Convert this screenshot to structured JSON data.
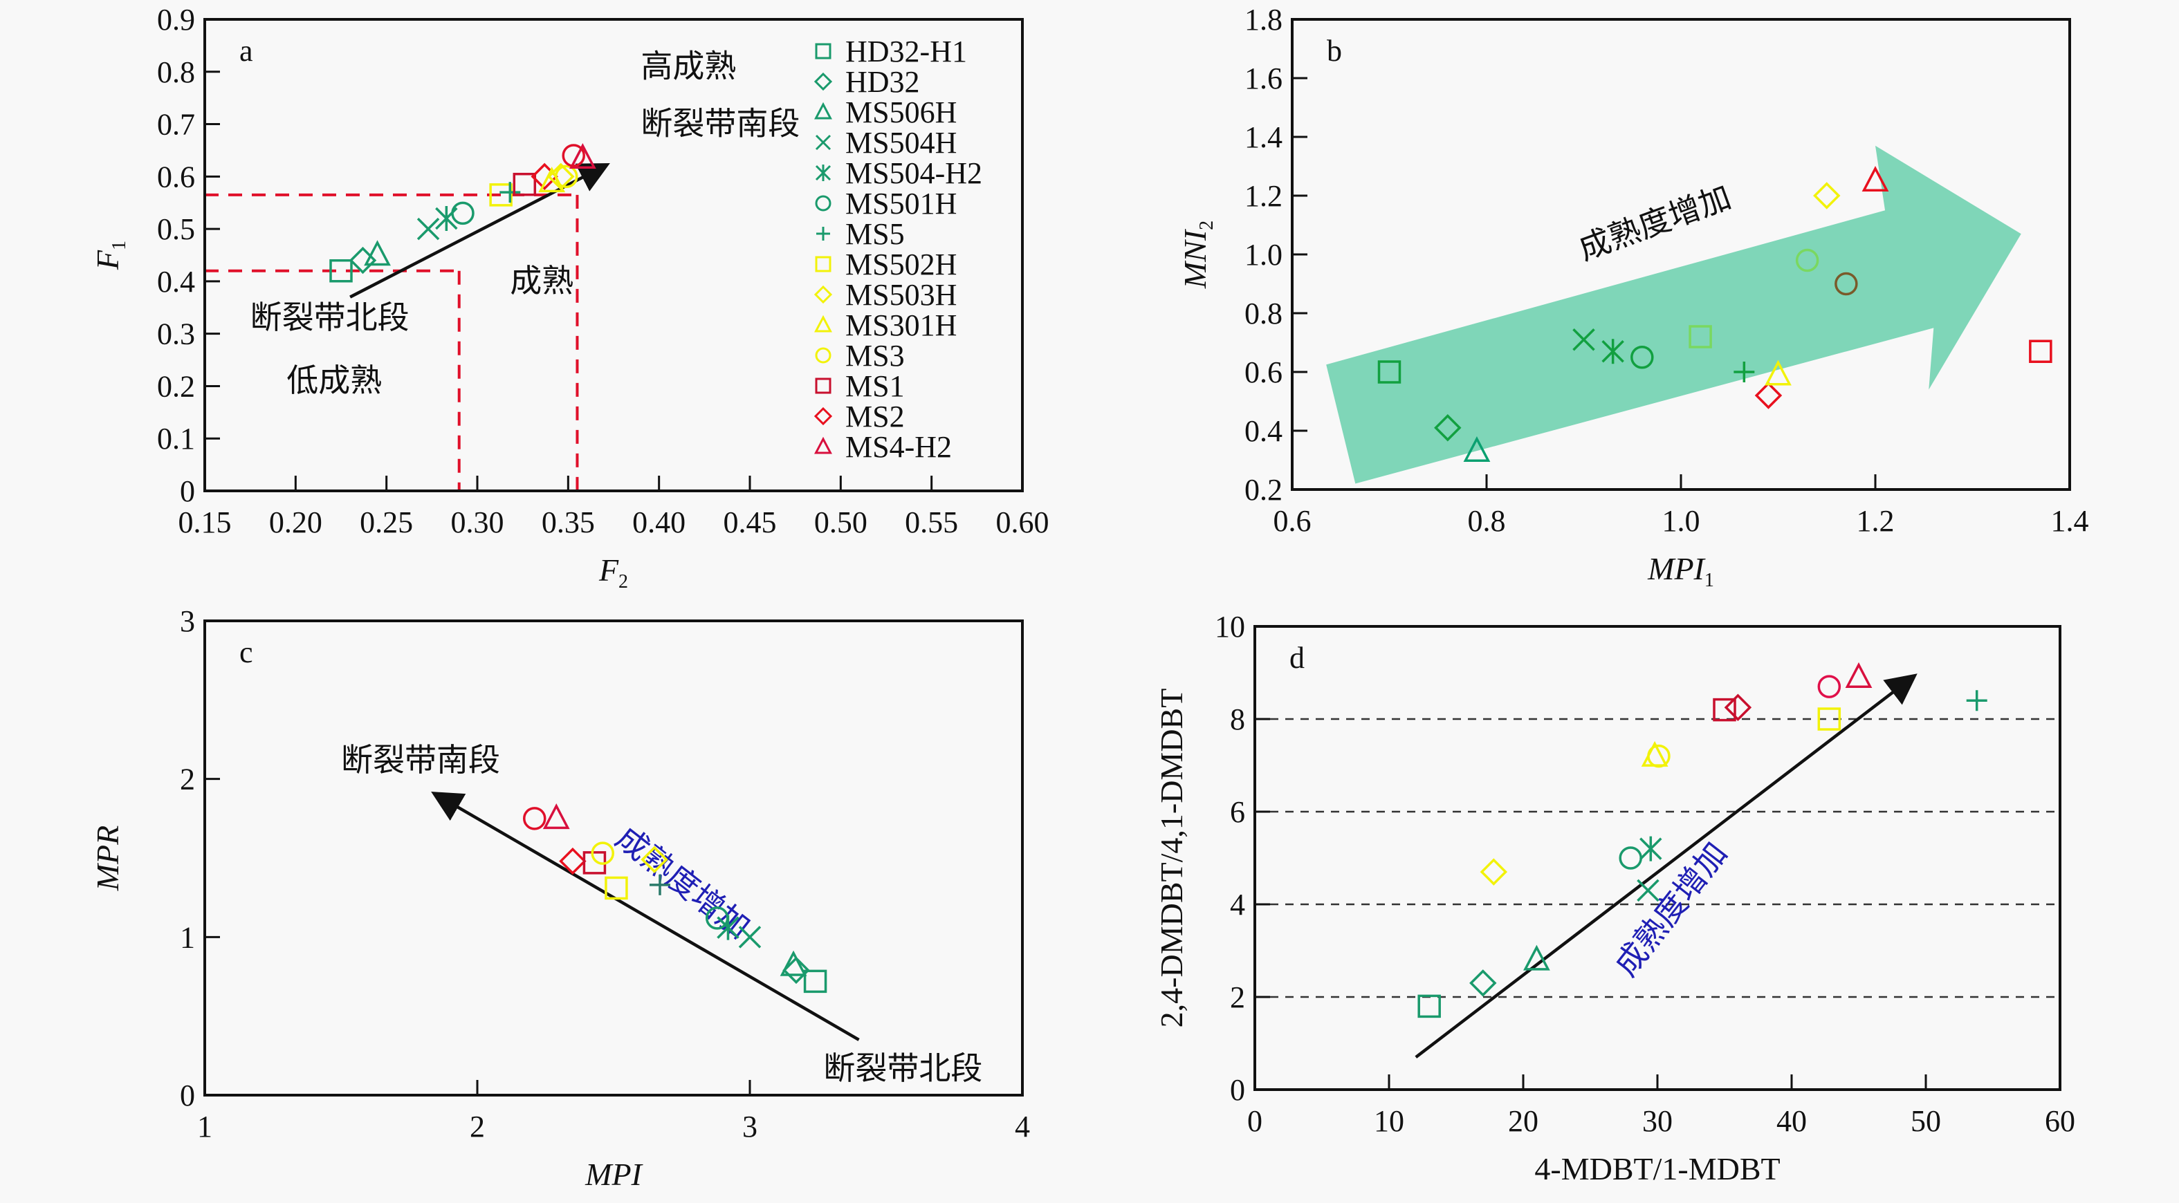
{
  "series_styles": {
    "HD32-H1": {
      "marker": "square",
      "color": "#1a9a6c"
    },
    "HD32": {
      "marker": "diamond",
      "color": "#1a9a6c"
    },
    "MS506H": {
      "marker": "triangle",
      "color": "#1a9a6c"
    },
    "MS504H": {
      "marker": "x",
      "color": "#1a9a6c"
    },
    "MS504-H2": {
      "marker": "asterisk",
      "color": "#1a9a6c"
    },
    "MS501H": {
      "marker": "circle",
      "color": "#1a9a6c"
    },
    "MS5": {
      "marker": "plus",
      "color": "#1a9a6c"
    },
    "MS502H": {
      "marker": "square",
      "color": "#f2f20a"
    },
    "MS503H": {
      "marker": "diamond",
      "color": "#f2f20a"
    },
    "MS301H": {
      "marker": "triangle",
      "color": "#f2f20a"
    },
    "MS3": {
      "marker": "circle",
      "color": "#f2f20a"
    },
    "MS1": {
      "marker": "square",
      "color": "#c8102e"
    },
    "MS2": {
      "marker": "diamond",
      "color": "#e8101e"
    },
    "MS4-H2": {
      "marker": "triangle",
      "color": "#d8103e"
    }
  },
  "chart_data": [
    {
      "id": "a",
      "type": "scatter",
      "panel_label": "a",
      "xlabel": "F",
      "xlabel_sub": "2",
      "ylabel": "F",
      "ylabel_sub": "1",
      "xlim": [
        0.15,
        0.6
      ],
      "ylim": [
        0,
        0.9
      ],
      "xticks": [
        "0.15",
        "0.20",
        "0.25",
        "0.30",
        "0.35",
        "0.40",
        "0.45",
        "0.50",
        "0.55",
        "0.60"
      ],
      "yticks": [
        "0",
        "0.1",
        "0.2",
        "0.3",
        "0.4",
        "0.5",
        "0.6",
        "0.7",
        "0.8",
        "0.9"
      ],
      "grid": false,
      "legend": {
        "placement": "top-right",
        "entries": [
          "HD32-H1",
          "HD32",
          "MS506H",
          "MS504H",
          "MS504-H2",
          "MS501H",
          "MS5",
          "MS502H",
          "MS503H",
          "MS301H",
          "MS3",
          "MS1",
          "MS2",
          "MS4-H2"
        ]
      },
      "threshold_lines": [
        {
          "orientation": "horizontal",
          "y": 0.42,
          "x_end": 0.29,
          "color": "#e0102a"
        },
        {
          "orientation": "horizontal",
          "y": 0.565,
          "x_end": 0.355,
          "color": "#e0102a"
        },
        {
          "orientation": "vertical",
          "x": 0.29,
          "y_end": 0.42,
          "color": "#e0102a"
        },
        {
          "orientation": "vertical",
          "x": 0.355,
          "y_end": 0.565,
          "color": "#e0102a"
        }
      ],
      "arrow": {
        "from": [
          0.23,
          0.37
        ],
        "to": [
          0.37,
          0.62
        ]
      },
      "annotations": [
        {
          "text": "高成熟",
          "x": 0.39,
          "y": 0.79
        },
        {
          "text": "断裂带南段",
          "x": 0.39,
          "y": 0.68
        },
        {
          "text": "成熟",
          "x": 0.318,
          "y": 0.38
        },
        {
          "text": "断裂带北段",
          "x": 0.175,
          "y": 0.31
        },
        {
          "text": "低成熟",
          "x": 0.195,
          "y": 0.19
        }
      ],
      "points": [
        {
          "series": "HD32-H1",
          "x": 0.225,
          "y": 0.42
        },
        {
          "series": "HD32",
          "x": 0.237,
          "y": 0.44
        },
        {
          "series": "MS506H",
          "x": 0.245,
          "y": 0.45
        },
        {
          "series": "MS504H",
          "x": 0.273,
          "y": 0.5
        },
        {
          "series": "MS504-H2",
          "x": 0.283,
          "y": 0.52
        },
        {
          "series": "MS501H",
          "x": 0.292,
          "y": 0.53
        },
        {
          "series": "MS502H",
          "x": 0.313,
          "y": 0.565
        },
        {
          "series": "MS5",
          "x": 0.318,
          "y": 0.57
        },
        {
          "series": "MS1",
          "x": 0.326,
          "y": 0.585
        },
        {
          "series": "MS2",
          "x": 0.337,
          "y": 0.6
        },
        {
          "series": "MS301H",
          "x": 0.341,
          "y": 0.59
        },
        {
          "series": "MS503H",
          "x": 0.346,
          "y": 0.6
        },
        {
          "series": "MS3",
          "x": 0.349,
          "y": 0.6
        },
        {
          "series": "MS4-H2",
          "x": 0.358,
          "y": 0.635
        },
        {
          "series": "MS1",
          "x": 0.353,
          "y": 0.64,
          "marker": "circle",
          "color": "#e0102a"
        }
      ]
    },
    {
      "id": "b",
      "type": "scatter",
      "panel_label": "b",
      "xlabel": "MPI",
      "xlabel_sub": "1",
      "ylabel": "MNI",
      "ylabel_sub": "2",
      "xlim": [
        0.6,
        1.4
      ],
      "ylim": [
        0.2,
        1.8
      ],
      "xticks": [
        "0.6",
        "0.8",
        "1.0",
        "1.2",
        "1.4"
      ],
      "yticks": [
        "0.2",
        "0.4",
        "0.6",
        "0.8",
        "1.0",
        "1.2",
        "1.4",
        "1.6",
        "1.8"
      ],
      "grid": false,
      "big_arrow": {
        "color": "#7fd6b8",
        "label": "成熟度增加"
      },
      "points": [
        {
          "series": "HD32-H1",
          "x": 0.7,
          "y": 0.6,
          "color": "#12a040"
        },
        {
          "series": "HD32",
          "x": 0.76,
          "y": 0.41,
          "color": "#12a040"
        },
        {
          "series": "MS506H",
          "x": 0.79,
          "y": 0.33,
          "color": "#0aa070"
        },
        {
          "series": "MS504H",
          "x": 0.9,
          "y": 0.71,
          "color": "#12a040"
        },
        {
          "series": "MS504-H2",
          "x": 0.93,
          "y": 0.67,
          "color": "#12a040"
        },
        {
          "series": "MS501H",
          "x": 0.96,
          "y": 0.65,
          "color": "#12a040"
        },
        {
          "series": "MS502H",
          "x": 1.02,
          "y": 0.72,
          "color": "#7ad860"
        },
        {
          "series": "MS5",
          "x": 1.065,
          "y": 0.6,
          "color": "#12a040"
        },
        {
          "series": "MS2",
          "x": 1.09,
          "y": 0.52
        },
        {
          "series": "MS301H",
          "x": 1.1,
          "y": 0.59
        },
        {
          "series": "MS3",
          "x": 1.13,
          "y": 0.98,
          "color": "#7ad860"
        },
        {
          "series": "MS503H",
          "x": 1.15,
          "y": 1.2
        },
        {
          "series": "MS1",
          "x": 1.17,
          "y": 0.9,
          "marker": "circle",
          "color": "#7a5a2a"
        },
        {
          "series": "MS4-H2",
          "x": 1.2,
          "y": 1.25,
          "color": "#e8101e"
        },
        {
          "series": "MS1",
          "x": 1.37,
          "y": 0.67,
          "color": "#e8101e"
        }
      ]
    },
    {
      "id": "c",
      "type": "scatter",
      "panel_label": "c",
      "xlabel": "MPI",
      "ylabel": "MPR",
      "xlim": [
        1,
        4
      ],
      "ylim": [
        0,
        3
      ],
      "xticks": [
        "1",
        "2",
        "3",
        "4"
      ],
      "yticks": [
        "0",
        "1",
        "2",
        "3"
      ],
      "grid": false,
      "arrow": {
        "from": [
          3.4,
          0.35
        ],
        "to": [
          1.85,
          1.9
        ]
      },
      "annotations": [
        {
          "text": "断裂带南段",
          "x": 1.5,
          "y": 2.05,
          "color": "black"
        },
        {
          "text": "断裂带北段",
          "x": 3.27,
          "y": 0.1,
          "color": "black"
        },
        {
          "text": "成熟度增加",
          "x": 2.5,
          "y": 1.6,
          "color": "blue",
          "rotate": 38
        }
      ],
      "points": [
        {
          "series": "MS3",
          "x": 2.21,
          "y": 1.75,
          "color": "#e0102a"
        },
        {
          "series": "MS4-H2",
          "x": 2.29,
          "y": 1.75
        },
        {
          "series": "MS2",
          "x": 2.35,
          "y": 1.48
        },
        {
          "series": "MS1",
          "x": 2.43,
          "y": 1.47
        },
        {
          "series": "MS3",
          "x": 2.46,
          "y": 1.53
        },
        {
          "series": "MS502H",
          "x": 2.51,
          "y": 1.31
        },
        {
          "series": "MS503H",
          "x": 2.65,
          "y": 1.49
        },
        {
          "series": "MS5",
          "x": 2.67,
          "y": 1.33,
          "color": "#2a7a6a"
        },
        {
          "series": "MS501H",
          "x": 2.88,
          "y": 1.12
        },
        {
          "series": "MS504-H2",
          "x": 2.92,
          "y": 1.06
        },
        {
          "series": "MS504H",
          "x": 3.0,
          "y": 1.0
        },
        {
          "series": "MS506H",
          "x": 3.16,
          "y": 0.82
        },
        {
          "series": "HD32",
          "x": 3.17,
          "y": 0.79
        },
        {
          "series": "HD32-H1",
          "x": 3.24,
          "y": 0.72
        }
      ]
    },
    {
      "id": "d",
      "type": "scatter",
      "panel_label": "d",
      "xlabel": "4-MDBT/1-MDBT",
      "ylabel": "2,4-DMDBT/4,1-DMDBT",
      "xlim": [
        0,
        60
      ],
      "ylim": [
        0,
        10
      ],
      "xticks": [
        "0",
        "10",
        "20",
        "30",
        "40",
        "50",
        "60"
      ],
      "yticks": [
        "0",
        "2",
        "4",
        "6",
        "8",
        "10"
      ],
      "grid": "horizontal-dashed",
      "gridlines_y": [
        2,
        4,
        6,
        8
      ],
      "arrow": {
        "from": [
          12,
          0.7
        ],
        "to": [
          49,
          8.9
        ]
      },
      "annotations": [
        {
          "text": "成熟度增加",
          "x": 28,
          "y": 2.4,
          "color": "blue",
          "rotate": -52
        }
      ],
      "points": [
        {
          "series": "HD32-H1",
          "x": 13,
          "y": 1.8
        },
        {
          "series": "HD32",
          "x": 17,
          "y": 2.3
        },
        {
          "series": "MS506H",
          "x": 21,
          "y": 2.8
        },
        {
          "series": "MS503H",
          "x": 17.8,
          "y": 4.7
        },
        {
          "series": "MS501H",
          "x": 28,
          "y": 5.0
        },
        {
          "series": "MS504-H2",
          "x": 29.5,
          "y": 5.2
        },
        {
          "series": "MS504H",
          "x": 29.3,
          "y": 4.3
        },
        {
          "series": "MS301H",
          "x": 29.8,
          "y": 7.2
        },
        {
          "series": "MS3",
          "x": 30.1,
          "y": 7.2
        },
        {
          "series": "MS1",
          "x": 35,
          "y": 8.2
        },
        {
          "series": "MS2",
          "x": 36,
          "y": 8.25,
          "color": "#c8102e"
        },
        {
          "series": "MS502H",
          "x": 42.8,
          "y": 8.0
        },
        {
          "series": "MS3",
          "x": 42.8,
          "y": 8.7,
          "color": "#e0104a"
        },
        {
          "series": "MS4-H2",
          "x": 45,
          "y": 8.9
        },
        {
          "series": "MS5",
          "x": 53.8,
          "y": 8.4
        }
      ]
    }
  ]
}
